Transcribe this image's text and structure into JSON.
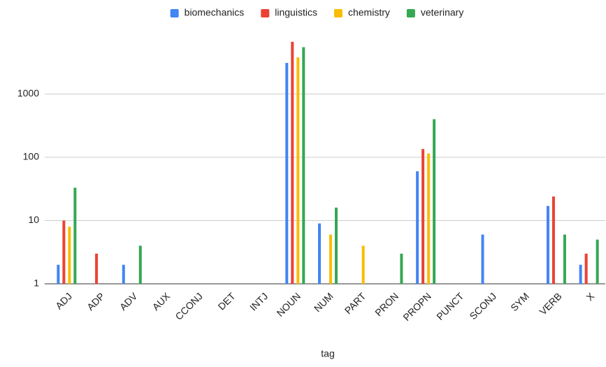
{
  "chart_data": {
    "type": "bar",
    "log_scale": true,
    "grid": true,
    "legend": "top",
    "x_label": "tag",
    "categories": [
      "ADJ",
      "ADP",
      "ADV",
      "AUX",
      "CCONJ",
      "DET",
      "INTJ",
      "NOUN",
      "NUM",
      "PART",
      "PRON",
      "PROPN",
      "PUNCT",
      "SCONJ",
      "SYM",
      "VERB",
      "X"
    ],
    "series": [
      {
        "name": "biomechanics",
        "color": "#4285f4",
        "values": [
          2,
          null,
          2,
          null,
          null,
          null,
          null,
          3100,
          9,
          null,
          null,
          60,
          null,
          6,
          null,
          17,
          2
        ]
      },
      {
        "name": "linguistics",
        "color": "#ea4335",
        "values": [
          10,
          3,
          null,
          null,
          null,
          null,
          null,
          6700,
          null,
          null,
          null,
          135,
          null,
          null,
          null,
          24,
          3
        ]
      },
      {
        "name": "chemistry",
        "color": "#fbbc04",
        "values": [
          8,
          null,
          null,
          null,
          null,
          null,
          null,
          3800,
          6,
          4,
          null,
          115,
          null,
          null,
          null,
          null,
          null
        ]
      },
      {
        "name": "veterinary",
        "color": "#34a853",
        "values": [
          33,
          null,
          4,
          null,
          null,
          null,
          null,
          5500,
          16,
          null,
          3,
          400,
          null,
          null,
          null,
          6,
          5
        ]
      }
    ],
    "ylim": [
      1,
      10000
    ],
    "yticks": [
      1,
      10,
      100,
      1000
    ]
  }
}
